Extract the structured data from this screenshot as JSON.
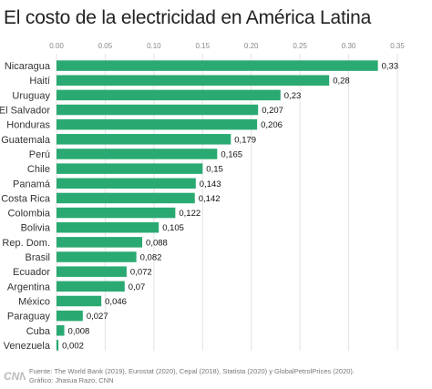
{
  "chart_data": {
    "type": "bar",
    "orientation": "horizontal",
    "title": "El costo de la electricidad en América Latina",
    "categories": [
      "Nicaragua",
      "Haití",
      "Uruguay",
      "El Salvador",
      "Honduras",
      "Guatemala",
      "Perú",
      "Chile",
      "Panamá",
      "Costa Rica",
      "Colombia",
      "Bolivia",
      "Rep. Dom.",
      "Brasil",
      "Ecuador",
      "Argentina",
      "México",
      "Paraguay",
      "Cuba",
      "Venezuela"
    ],
    "values": [
      0.33,
      0.28,
      0.23,
      0.207,
      0.206,
      0.179,
      0.165,
      0.15,
      0.143,
      0.142,
      0.122,
      0.105,
      0.088,
      0.082,
      0.072,
      0.07,
      0.046,
      0.027,
      0.008,
      0.002
    ],
    "value_labels": [
      "0,33",
      "0,28",
      "0,23",
      "0,207",
      "0,206",
      "0,179",
      "0,165",
      "0,15",
      "0,143",
      "0,142",
      "0,122",
      "0,105",
      "0,088",
      "0,082",
      "0,072",
      "0,07",
      "0,046",
      "0,027",
      "0,008",
      "0,002"
    ],
    "xlim": [
      0,
      0.35
    ],
    "xticks": [
      0,
      0.05,
      0.1,
      0.15,
      0.2,
      0.25,
      0.3,
      0.35
    ],
    "xtick_labels": [
      "0.00",
      "0.05",
      "0.10",
      "0.15",
      "0.20",
      "0.25",
      "0.30",
      "0.35"
    ],
    "xaxis_position": "top",
    "grid": true,
    "bar_color": "#2aaa72",
    "xlabel": "",
    "ylabel": ""
  },
  "footer": {
    "source": "Fuente: The World Bank (2019), Eurostat (2020), Cepal (2018), Statista (2020) y GlobalPetrolPrices (2020).",
    "credit": "Gráfico: Jhasua Razo, CNN",
    "logo_text": "CNN"
  }
}
